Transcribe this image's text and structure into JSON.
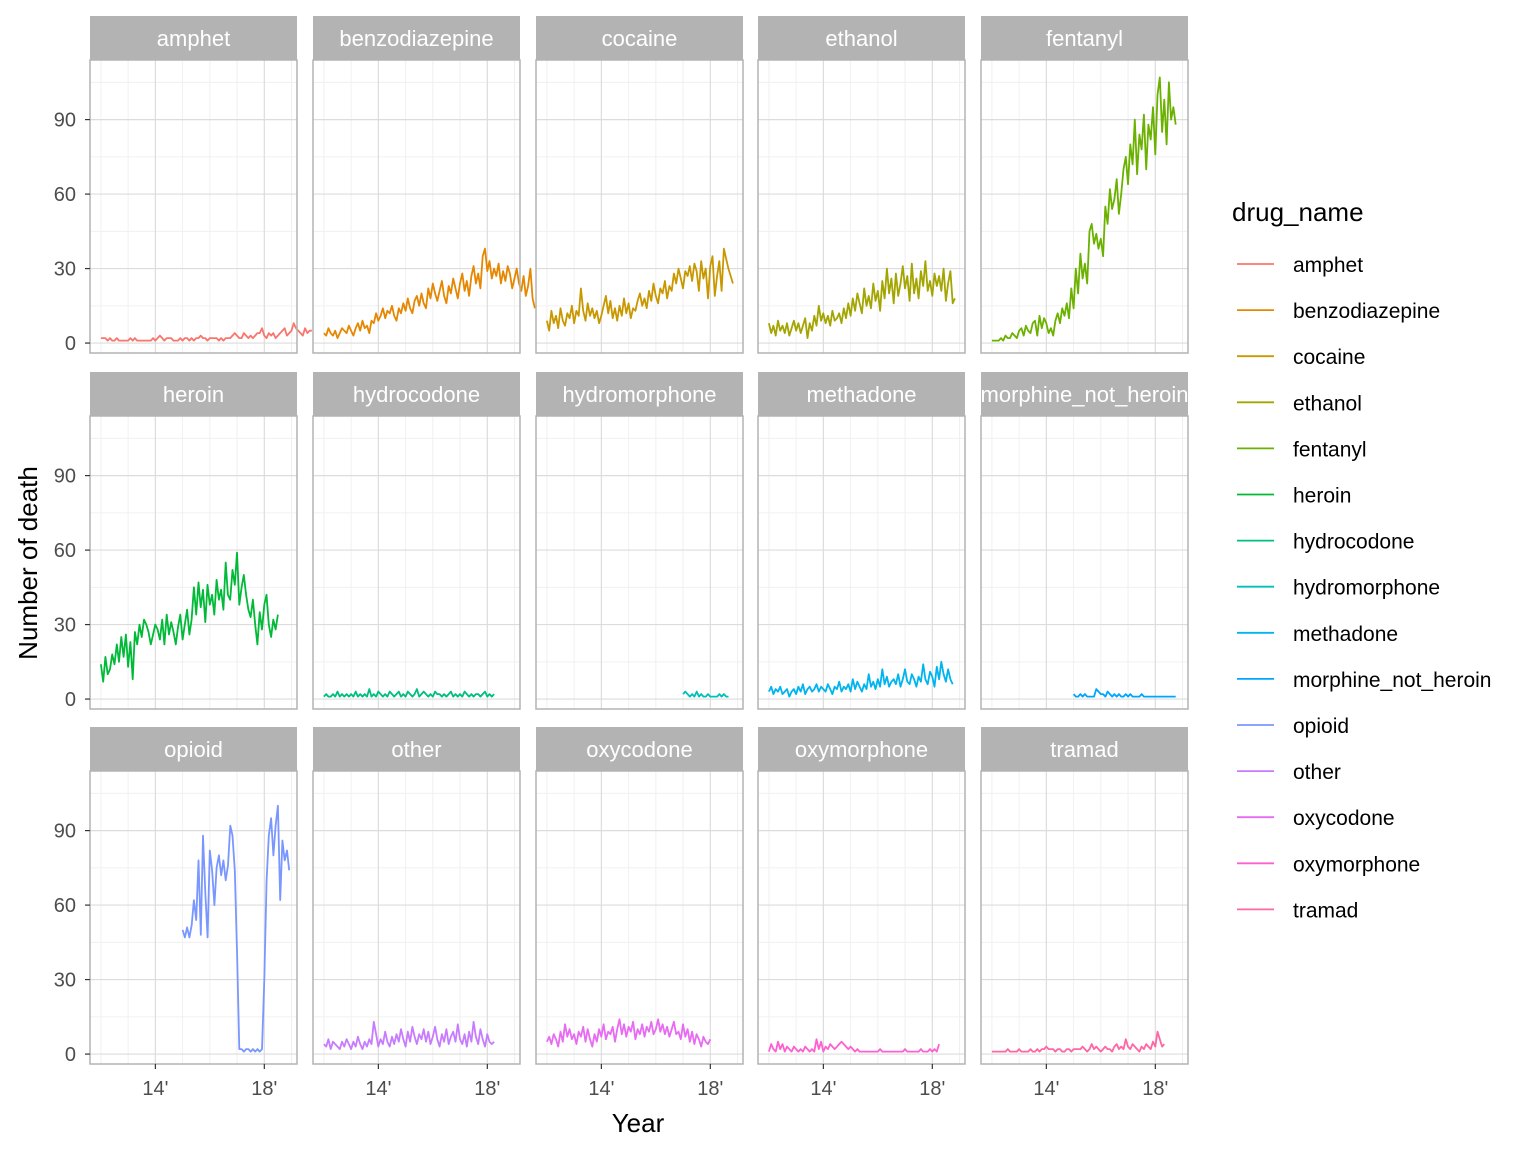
{
  "chart_data": {
    "type": "line",
    "xlabel": "Year",
    "ylabel": "Number of death",
    "x_ticks": [
      {
        "value": 2014,
        "label": "14'"
      },
      {
        "value": 2018,
        "label": "18'"
      }
    ],
    "xlim": [
      2011.6,
      2019.2
    ],
    "y_ticks": [
      0,
      30,
      60,
      90
    ],
    "ylim": [
      -4,
      114
    ],
    "grid": true,
    "facet_grid": {
      "rows": 3,
      "cols": 5
    },
    "legend": {
      "title": "drug_name",
      "position": "right"
    },
    "series": [
      {
        "name": "amphet",
        "color": "#F8766D",
        "x_start": 2012.0,
        "x_step": 0.0833,
        "values": [
          2,
          2,
          2,
          1,
          2,
          1,
          1,
          2,
          1,
          1,
          1,
          1,
          1,
          2,
          1,
          2,
          1,
          1,
          1,
          1,
          1,
          1,
          1,
          2,
          1,
          2,
          3,
          2,
          1,
          2,
          2,
          2,
          1,
          1,
          1,
          2,
          1,
          2,
          2,
          1,
          2,
          1,
          2,
          2,
          3,
          2,
          2,
          1,
          2,
          2,
          2,
          2,
          1,
          2,
          1,
          2,
          2,
          2,
          3,
          4,
          3,
          2,
          2,
          4,
          3,
          2,
          3,
          2,
          3,
          4,
          4,
          6,
          3,
          2,
          4,
          3,
          4,
          2,
          3,
          4,
          5,
          6,
          3,
          4,
          5,
          8,
          6,
          5,
          4,
          3,
          6,
          4,
          5,
          5
        ]
      },
      {
        "name": "benzodiazepine",
        "color": "#E58700",
        "x_start": 2012.0,
        "x_step": 0.0833,
        "values": [
          4,
          3,
          6,
          4,
          3,
          5,
          2,
          4,
          6,
          5,
          4,
          7,
          5,
          3,
          6,
          8,
          5,
          9,
          6,
          7,
          4,
          9,
          8,
          12,
          9,
          11,
          14,
          10,
          13,
          12,
          15,
          11,
          9,
          14,
          12,
          16,
          13,
          18,
          14,
          12,
          17,
          19,
          15,
          20,
          16,
          14,
          22,
          18,
          24,
          20,
          17,
          21,
          25,
          19,
          16,
          23,
          20,
          26,
          22,
          18,
          24,
          28,
          21,
          25,
          19,
          27,
          31,
          24,
          28,
          22,
          35,
          38,
          29,
          33,
          26,
          30,
          27,
          32,
          24,
          29,
          25,
          31,
          28,
          22,
          26,
          30,
          24,
          21,
          27,
          19,
          23,
          30,
          18,
          14
        ]
      },
      {
        "name": "cocaine",
        "color": "#C99800",
        "x_start": 2012.0,
        "x_step": 0.0833,
        "values": [
          9,
          5,
          13,
          8,
          11,
          6,
          14,
          9,
          7,
          12,
          10,
          15,
          8,
          13,
          11,
          22,
          13,
          9,
          16,
          11,
          14,
          10,
          13,
          8,
          11,
          15,
          19,
          12,
          17,
          10,
          14,
          9,
          15,
          11,
          18,
          12,
          16,
          10,
          14,
          13,
          17,
          20,
          15,
          18,
          14,
          21,
          17,
          24,
          19,
          16,
          22,
          20,
          25,
          18,
          23,
          21,
          28,
          24,
          30,
          26,
          22,
          29,
          27,
          31,
          25,
          32,
          29,
          21,
          33,
          26,
          30,
          18,
          31,
          35,
          19,
          27,
          33,
          21,
          38,
          34,
          30,
          27,
          24
        ]
      },
      {
        "name": "ethanol",
        "color": "#A3A500",
        "x_start": 2012.0,
        "x_step": 0.0833,
        "values": [
          8,
          4,
          7,
          3,
          9,
          5,
          7,
          4,
          8,
          3,
          6,
          9,
          5,
          8,
          4,
          7,
          10,
          2,
          8,
          5,
          11,
          7,
          15,
          9,
          12,
          8,
          11,
          7,
          13,
          9,
          10,
          12,
          8,
          14,
          10,
          16,
          11,
          18,
          13,
          20,
          16,
          12,
          22,
          15,
          19,
          14,
          24,
          17,
          21,
          13,
          25,
          18,
          30,
          20,
          26,
          16,
          28,
          19,
          24,
          31,
          22,
          27,
          17,
          32,
          20,
          26,
          18,
          29,
          23,
          33,
          21,
          25,
          19,
          28,
          23,
          27,
          21,
          30,
          17,
          24,
          29,
          16,
          18
        ]
      },
      {
        "name": "fentanyl",
        "color": "#6BB100",
        "x_start": 2012.0,
        "x_step": 0.0833,
        "values": [
          1,
          1,
          1,
          1,
          2,
          1,
          3,
          2,
          2,
          4,
          3,
          2,
          5,
          6,
          3,
          7,
          5,
          4,
          8,
          9,
          3,
          11,
          6,
          10,
          8,
          4,
          6,
          3,
          9,
          12,
          8,
          14,
          11,
          16,
          10,
          22,
          14,
          30,
          20,
          36,
          26,
          32,
          24,
          45,
          48,
          40,
          44,
          38,
          42,
          35,
          55,
          48,
          62,
          54,
          58,
          66,
          52,
          60,
          70,
          75,
          64,
          80,
          72,
          90,
          68,
          84,
          78,
          92,
          70,
          88,
          82,
          95,
          76,
          100,
          107,
          85,
          98,
          80,
          105,
          90,
          95,
          88
        ]
      },
      {
        "name": "heroin",
        "color": "#00BA38",
        "x_start": 2012.0,
        "x_step": 0.0833,
        "values": [
          14,
          7,
          17,
          10,
          12,
          18,
          14,
          22,
          15,
          25,
          17,
          26,
          13,
          23,
          8,
          27,
          22,
          30,
          25,
          32,
          30,
          27,
          22,
          26,
          30,
          28,
          24,
          32,
          22,
          34,
          26,
          31,
          27,
          22,
          29,
          34,
          24,
          30,
          36,
          26,
          32,
          45,
          34,
          47,
          37,
          44,
          31,
          46,
          38,
          42,
          34,
          48,
          40,
          44,
          36,
          55,
          42,
          40,
          52,
          46,
          59,
          38,
          45,
          50,
          42,
          36,
          33,
          40,
          30,
          22,
          35,
          28,
          38,
          42,
          30,
          25,
          32,
          28,
          34
        ]
      },
      {
        "name": "hydrocodone",
        "color": "#00BF7D",
        "x_start": 2012.0,
        "x_step": 0.0833,
        "values": [
          1,
          2,
          1,
          1,
          2,
          1,
          3,
          1,
          2,
          1,
          2,
          1,
          2,
          1,
          3,
          1,
          2,
          1,
          2,
          1,
          4,
          1,
          2,
          1,
          3,
          2,
          1,
          2,
          1,
          3,
          2,
          1,
          2,
          3,
          1,
          2,
          1,
          3,
          2,
          1,
          2,
          4,
          1,
          2,
          3,
          2,
          1,
          2,
          1,
          3,
          2,
          2,
          1,
          2,
          1,
          2,
          3,
          1,
          2,
          1,
          2,
          1,
          3,
          2,
          1,
          2,
          1,
          2,
          2,
          1,
          2,
          3,
          1,
          2,
          1,
          2
        ]
      },
      {
        "name": "hydromorphone",
        "color": "#00C0B8",
        "x_start": 2017.0,
        "x_step": 0.0833,
        "values": [
          2,
          3,
          2,
          1,
          2,
          1,
          3,
          1,
          2,
          1,
          1,
          2,
          1,
          1,
          1,
          1,
          2,
          1,
          2,
          1,
          1
        ]
      },
      {
        "name": "methadone",
        "color": "#00B4EF",
        "x_start": 2012.0,
        "x_step": 0.0833,
        "values": [
          3,
          5,
          2,
          4,
          3,
          5,
          2,
          3,
          4,
          1,
          3,
          4,
          2,
          5,
          3,
          6,
          2,
          4,
          5,
          3,
          4,
          6,
          3,
          5,
          4,
          3,
          6,
          4,
          2,
          5,
          4,
          7,
          3,
          5,
          4,
          6,
          3,
          8,
          4,
          7,
          5,
          3,
          6,
          4,
          10,
          5,
          7,
          4,
          8,
          5,
          12,
          6,
          9,
          5,
          7,
          8,
          6,
          10,
          5,
          8,
          12,
          7,
          6,
          10,
          8,
          5,
          9,
          7,
          14,
          8,
          6,
          11,
          9,
          5,
          13,
          8,
          15,
          10,
          7,
          12,
          8,
          6
        ]
      },
      {
        "name": "morphine_not_heroin",
        "color": "#00A5FF",
        "x_start": 2015.0,
        "x_step": 0.0833,
        "values": [
          2,
          1,
          1,
          2,
          1,
          2,
          1,
          1,
          1,
          1,
          4,
          3,
          2,
          2,
          1,
          3,
          2,
          1,
          2,
          1,
          2,
          1,
          1,
          2,
          1,
          2,
          1,
          1,
          1,
          1,
          2,
          1,
          1,
          1,
          1,
          1,
          1,
          1,
          1,
          1,
          1,
          1,
          1,
          1,
          1,
          1
        ]
      },
      {
        "name": "opioid",
        "color": "#7997FF",
        "x_start": 2015.0,
        "x_step": 0.0833,
        "values": [
          50,
          47,
          51,
          47,
          52,
          62,
          54,
          78,
          48,
          88,
          65,
          47,
          82,
          74,
          60,
          75,
          80,
          72,
          78,
          70,
          76,
          92,
          88,
          74,
          40,
          2,
          2,
          1,
          2,
          2,
          1,
          2,
          1,
          2,
          1,
          2,
          30,
          70,
          88,
          95,
          80,
          92,
          100,
          62,
          86,
          78,
          82,
          74
        ]
      },
      {
        "name": "other",
        "color": "#C77CFF",
        "x_start": 2012.0,
        "x_step": 0.0833,
        "values": [
          4,
          3,
          6,
          2,
          5,
          4,
          3,
          2,
          5,
          3,
          6,
          4,
          2,
          5,
          3,
          7,
          4,
          2,
          5,
          3,
          6,
          4,
          13,
          8,
          3,
          6,
          4,
          9,
          5,
          3,
          7,
          4,
          8,
          5,
          10,
          6,
          3,
          9,
          5,
          11,
          7,
          4,
          8,
          6,
          10,
          5,
          9,
          4,
          7,
          11,
          6,
          3,
          8,
          5,
          10,
          4,
          7,
          9,
          5,
          12,
          6,
          4,
          8,
          3,
          9,
          5,
          13,
          7,
          4,
          10,
          6,
          3,
          8,
          5,
          4,
          5
        ]
      },
      {
        "name": "oxycodone",
        "color": "#E76BF3",
        "x_start": 2012.0,
        "x_step": 0.0833,
        "values": [
          5,
          7,
          4,
          8,
          6,
          3,
          9,
          5,
          12,
          7,
          10,
          6,
          8,
          4,
          9,
          7,
          11,
          5,
          10,
          6,
          3,
          8,
          5,
          10,
          7,
          12,
          6,
          9,
          8,
          11,
          5,
          10,
          14,
          8,
          12,
          7,
          11,
          9,
          13,
          6,
          10,
          8,
          12,
          7,
          11,
          9,
          13,
          8,
          10,
          14,
          9,
          12,
          8,
          11,
          7,
          10,
          13,
          8,
          9,
          6,
          12,
          7,
          10,
          5,
          9,
          4,
          8,
          6,
          3,
          7,
          5,
          4,
          6
        ]
      },
      {
        "name": "oxymorphone",
        "color": "#FD61D1",
        "x_start": 2012.0,
        "x_step": 0.0833,
        "values": [
          1,
          4,
          2,
          1,
          5,
          2,
          4,
          1,
          3,
          2,
          1,
          3,
          2,
          1,
          2,
          1,
          3,
          2,
          1,
          2,
          1,
          6,
          2,
          5,
          1,
          3,
          2,
          4,
          3,
          2,
          3,
          4,
          5,
          4,
          3,
          2,
          3,
          2,
          1,
          2,
          1,
          1,
          1,
          1,
          1,
          1,
          1,
          1,
          1,
          2,
          1,
          1,
          1,
          1,
          1,
          1,
          1,
          1,
          1,
          1,
          2,
          1,
          1,
          1,
          1,
          1,
          1,
          2,
          1,
          1,
          1,
          2,
          1,
          2,
          1,
          4
        ]
      },
      {
        "name": "tramad",
        "color": "#FF67A4",
        "x_start": 2012.0,
        "x_step": 0.0833,
        "values": [
          1,
          1,
          1,
          1,
          1,
          1,
          1,
          2,
          1,
          1,
          1,
          1,
          2,
          1,
          1,
          1,
          1,
          2,
          1,
          1,
          2,
          1,
          2,
          2,
          3,
          2,
          2,
          2,
          1,
          2,
          2,
          1,
          1,
          2,
          2,
          1,
          2,
          2,
          2,
          2,
          3,
          2,
          1,
          2,
          4,
          2,
          3,
          2,
          1,
          2,
          3,
          2,
          2,
          1,
          3,
          4,
          2,
          3,
          2,
          6,
          3,
          2,
          4,
          3,
          2,
          1,
          3,
          2,
          4,
          3,
          2,
          5,
          3,
          9,
          6,
          3,
          4
        ]
      }
    ]
  }
}
